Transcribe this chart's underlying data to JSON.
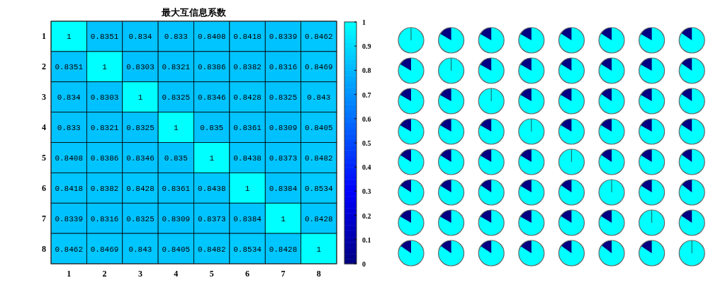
{
  "chart_data": {
    "type": "heatmap",
    "title": "最大互信息系数",
    "categories": [
      "1",
      "2",
      "3",
      "4",
      "5",
      "6",
      "7",
      "8"
    ],
    "y_categories": [
      "1",
      "2",
      "3",
      "4",
      "5",
      "6",
      "7",
      "8"
    ],
    "clim": [
      0,
      1
    ],
    "cticks": [
      0,
      0.1,
      0.2,
      0.3,
      0.4,
      0.5,
      0.6,
      0.7,
      0.8,
      0.9,
      1
    ],
    "data_labels": true,
    "cells": [
      [
        1,
        0.8351,
        0.834,
        0.833,
        0.8408,
        0.8418,
        0.8339,
        0.8462
      ],
      [
        0.8351,
        1,
        0.8303,
        0.8321,
        0.8386,
        0.8382,
        0.8316,
        0.8469
      ],
      [
        0.834,
        0.8303,
        1,
        0.8325,
        0.8346,
        0.8428,
        0.8325,
        0.843
      ],
      [
        0.833,
        0.8321,
        0.8325,
        1,
        0.835,
        0.8361,
        0.8309,
        0.8405
      ],
      [
        0.8408,
        0.8386,
        0.8346,
        0.835,
        1,
        0.8438,
        0.8373,
        0.8482
      ],
      [
        0.8418,
        0.8382,
        0.8428,
        0.8361,
        0.8438,
        1,
        0.8384,
        0.8534
      ],
      [
        0.8339,
        0.8316,
        0.8325,
        0.8309,
        0.8373,
        0.8384,
        1,
        0.8428
      ],
      [
        0.8462,
        0.8469,
        0.843,
        0.8405,
        0.8482,
        0.8534,
        0.8428,
        1
      ]
    ]
  }
}
